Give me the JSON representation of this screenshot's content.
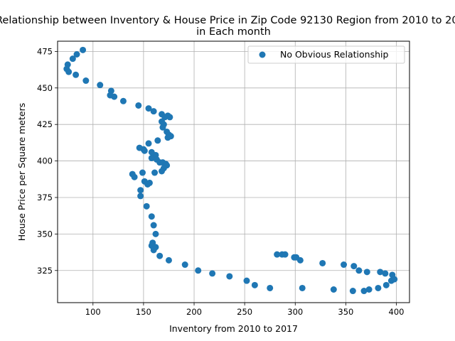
{
  "chart_data": {
    "type": "scatter",
    "title_line1": "Relationship between Inventory & House Price in Zip Code 92130 Region from 2010 to 2017",
    "title_line2": "in Each month",
    "xlabel": "Inventory from 2010 to 2017",
    "ylabel": "House Price per Square meters",
    "xlim": [
      65,
      413
    ],
    "ylim": [
      303,
      482
    ],
    "xticks": [
      100,
      150,
      200,
      250,
      300,
      350,
      400
    ],
    "yticks": [
      325,
      350,
      375,
      400,
      425,
      450,
      475
    ],
    "grid": true,
    "legend_position": "top-right",
    "series": [
      {
        "name": "No Obvious Relationship",
        "color": "#1f77b4",
        "points": [
          [
            90,
            476
          ],
          [
            84,
            473
          ],
          [
            80,
            470
          ],
          [
            75,
            466
          ],
          [
            74,
            463
          ],
          [
            76,
            461
          ],
          [
            83,
            459
          ],
          [
            93,
            455
          ],
          [
            107,
            452
          ],
          [
            118,
            448
          ],
          [
            117,
            445
          ],
          [
            121,
            444
          ],
          [
            130,
            441
          ],
          [
            145,
            438
          ],
          [
            155,
            436
          ],
          [
            160,
            434
          ],
          [
            168,
            432
          ],
          [
            174,
            431
          ],
          [
            176,
            430
          ],
          [
            171,
            430
          ],
          [
            168,
            427
          ],
          [
            170,
            425
          ],
          [
            169,
            423
          ],
          [
            173,
            420
          ],
          [
            175,
            418
          ],
          [
            177,
            417
          ],
          [
            174,
            416
          ],
          [
            164,
            414
          ],
          [
            155,
            412
          ],
          [
            146,
            409
          ],
          [
            150,
            408
          ],
          [
            151,
            407
          ],
          [
            158,
            406
          ],
          [
            162,
            404
          ],
          [
            158,
            402
          ],
          [
            163,
            401
          ],
          [
            166,
            399
          ],
          [
            169,
            399
          ],
          [
            172,
            398
          ],
          [
            173,
            397
          ],
          [
            170,
            395
          ],
          [
            168,
            393
          ],
          [
            161,
            392
          ],
          [
            149,
            392
          ],
          [
            139,
            391
          ],
          [
            141,
            389
          ],
          [
            151,
            386
          ],
          [
            156,
            385
          ],
          [
            154,
            384
          ],
          [
            147,
            380
          ],
          [
            147,
            376
          ],
          [
            153,
            369
          ],
          [
            158,
            362
          ],
          [
            160,
            356
          ],
          [
            162,
            350
          ],
          [
            159,
            344
          ],
          [
            158,
            342
          ],
          [
            162,
            341
          ],
          [
            160,
            339
          ],
          [
            166,
            335
          ],
          [
            175,
            332
          ],
          [
            191,
            329
          ],
          [
            204,
            325
          ],
          [
            218,
            323
          ],
          [
            235,
            321
          ],
          [
            252,
            318
          ],
          [
            260,
            315
          ],
          [
            275,
            313
          ],
          [
            282,
            336
          ],
          [
            287,
            336
          ],
          [
            290,
            336
          ],
          [
            299,
            334
          ],
          [
            301,
            334
          ],
          [
            305,
            332
          ],
          [
            307,
            313
          ],
          [
            327,
            330
          ],
          [
            338,
            312
          ],
          [
            348,
            329
          ],
          [
            357,
            311
          ],
          [
            358,
            328
          ],
          [
            363,
            325
          ],
          [
            368,
            311
          ],
          [
            371,
            324
          ],
          [
            373,
            312
          ],
          [
            382,
            313
          ],
          [
            384,
            324
          ],
          [
            389,
            323
          ],
          [
            390,
            315
          ],
          [
            395,
            318
          ],
          [
            396,
            322
          ],
          [
            398,
            319
          ]
        ]
      }
    ]
  }
}
